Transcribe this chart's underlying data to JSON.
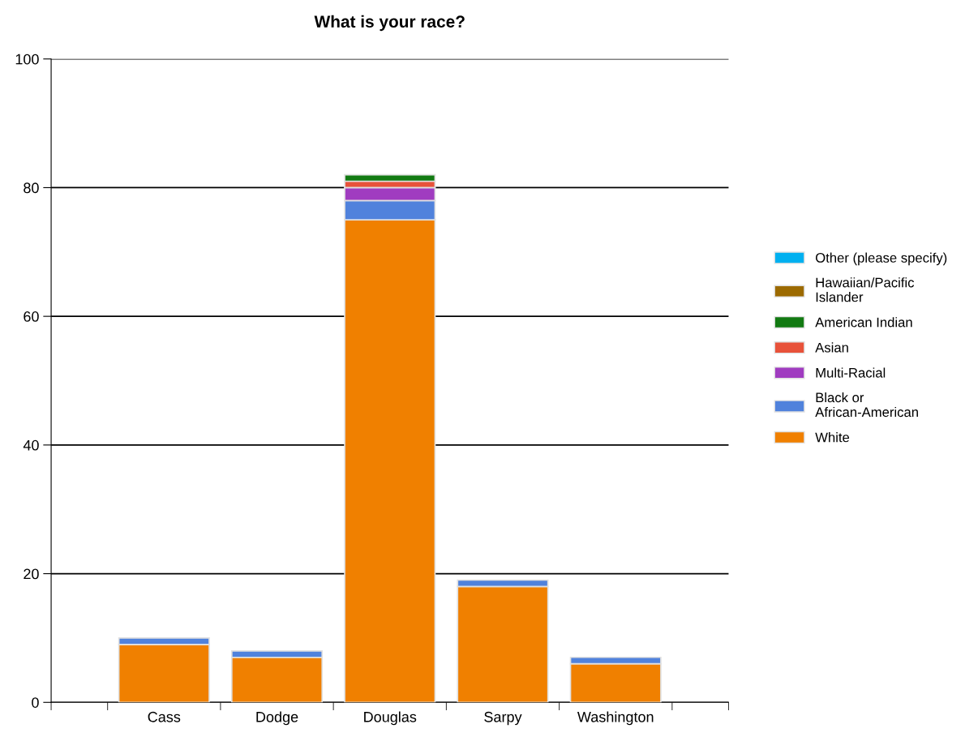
{
  "chart_data": {
    "type": "bar",
    "title": "What is your race?",
    "categories": [
      "Cass",
      "Dodge",
      "Douglas",
      "Sarpy",
      "Washington"
    ],
    "stacked": true,
    "series": [
      {
        "name": "White",
        "color": "#f08000",
        "values": [
          9,
          7,
          75,
          18,
          6
        ]
      },
      {
        "name": "Black or\nAfrican-American",
        "color": "#5082dc",
        "values": [
          1,
          1,
          3,
          1,
          1
        ]
      },
      {
        "name": "Multi-Racial",
        "color": "#a03cc0",
        "values": [
          0,
          0,
          2,
          0,
          0
        ]
      },
      {
        "name": "Asian",
        "color": "#e8523a",
        "values": [
          0,
          0,
          1,
          0,
          0
        ]
      },
      {
        "name": "American Indian",
        "color": "#127a12",
        "values": [
          0,
          0,
          1,
          0,
          0
        ]
      },
      {
        "name": "Hawaiian/Pacific\nIslander",
        "color": "#9c6a00",
        "values": [
          0,
          0,
          0,
          0,
          0
        ]
      },
      {
        "name": "Other (please specify)",
        "color": "#00b0f0",
        "values": [
          0,
          0,
          0,
          0,
          0
        ]
      }
    ],
    "ylim": [
      0,
      100
    ],
    "yticks": [
      0,
      20,
      40,
      60,
      80,
      100
    ],
    "grid": "y",
    "legend": "right"
  }
}
